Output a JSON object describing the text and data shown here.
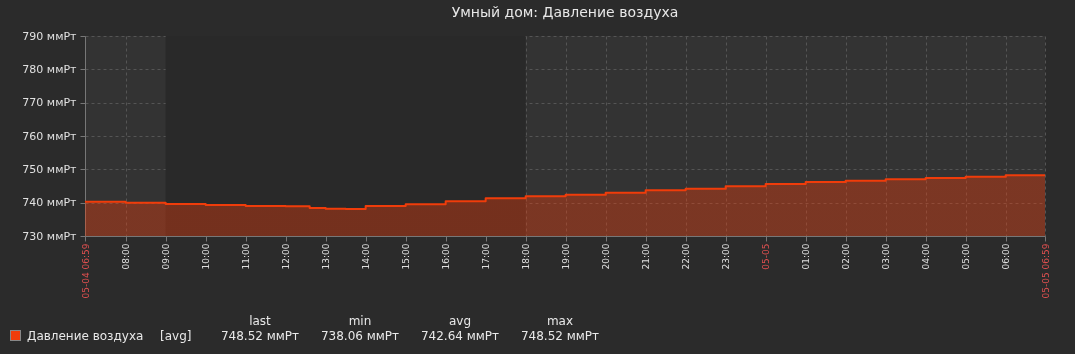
{
  "chart_data": {
    "type": "area",
    "title": "Умный дом: Давление воздуха",
    "x": [
      "--05-04T06:59",
      "--05-04T08:00",
      "--05-04T09:00",
      "--05-04T10:00",
      "--05-04T11:00",
      "--05-04T12:00",
      "--05-04T12:36",
      "--05-04T13:00",
      "--05-04T13:30",
      "--05-04T14:00",
      "--05-04T15:00",
      "--05-04T16:00",
      "--05-04T17:00",
      "--05-04T18:00",
      "--05-04T19:00",
      "--05-04T20:00",
      "--05-04T21:00",
      "--05-04T22:00",
      "--05-04T23:00",
      "--05-05T00:00",
      "--05-05T01:00",
      "--05-05T02:00",
      "--05-05T03:00",
      "--05-05T04:00",
      "--05-05T05:00",
      "--05-05T06:00",
      "--05-05T06:59"
    ],
    "series": [
      {
        "name": "Давление воздуха",
        "color": "#f03c0a",
        "values": [
          740.3,
          740.0,
          739.6,
          739.3,
          739.0,
          738.9,
          738.4,
          738.2,
          738.1,
          739.0,
          739.5,
          740.4,
          741.3,
          741.9,
          742.4,
          743.0,
          743.7,
          744.2,
          744.9,
          745.6,
          746.2,
          746.6,
          747.0,
          747.4,
          747.8,
          748.2,
          748.52
        ]
      }
    ],
    "xlim": [
      "--05-04T06:59",
      "--05-05T06:59"
    ],
    "xticks": [
      {
        "value": "--05-04T06:59",
        "label": "05-04 06:59"
      },
      {
        "value": "--05-04T08:00",
        "label": "08:00"
      },
      {
        "value": "--05-04T09:00",
        "label": "09:00"
      },
      {
        "value": "--05-04T10:00",
        "label": "10:00"
      },
      {
        "value": "--05-04T11:00",
        "label": "11:00"
      },
      {
        "value": "--05-04T12:00",
        "label": "12:00"
      },
      {
        "value": "--05-04T13:00",
        "label": "13:00"
      },
      {
        "value": "--05-04T14:00",
        "label": "14:00"
      },
      {
        "value": "--05-04T15:00",
        "label": "15:00"
      },
      {
        "value": "--05-04T16:00",
        "label": "16:00"
      },
      {
        "value": "--05-04T17:00",
        "label": "17:00"
      },
      {
        "value": "--05-04T18:00",
        "label": "18:00"
      },
      {
        "value": "--05-04T19:00",
        "label": "19:00"
      },
      {
        "value": "--05-04T20:00",
        "label": "20:00"
      },
      {
        "value": "--05-04T21:00",
        "label": "21:00"
      },
      {
        "value": "--05-04T22:00",
        "label": "22:00"
      },
      {
        "value": "--05-04T23:00",
        "label": "23:00"
      },
      {
        "value": "--05-05T00:00",
        "label": "05-05"
      },
      {
        "value": "--05-05T01:00",
        "label": "01:00"
      },
      {
        "value": "--05-05T02:00",
        "label": "02:00"
      },
      {
        "value": "--05-05T03:00",
        "label": "03:00"
      },
      {
        "value": "--05-05T04:00",
        "label": "04:00"
      },
      {
        "value": "--05-05T05:00",
        "label": "05:00"
      },
      {
        "value": "--05-05T06:00",
        "label": "06:00"
      },
      {
        "value": "--05-05T06:59",
        "label": "05-05 06:59"
      }
    ],
    "ylim": [
      730,
      790
    ],
    "yticks": [
      {
        "value": 730,
        "label": "730 ммРт"
      },
      {
        "value": 740,
        "label": "740 ммРт"
      },
      {
        "value": 750,
        "label": "750 ммРт"
      },
      {
        "value": 760,
        "label": "760 ммРт"
      },
      {
        "value": 770,
        "label": "770 ммРт"
      },
      {
        "value": 780,
        "label": "780 ммРт"
      },
      {
        "value": 790,
        "label": "790 ммРт"
      }
    ],
    "bands": [
      {
        "axis": "x",
        "from": "--05-04T09:00",
        "to": "--05-04T18:00",
        "color": "#292929"
      }
    ],
    "grid": true,
    "line_style": "solid",
    "legend": "bottom left",
    "annotations": [
      "[avg]",
      "last",
      "min",
      "avg",
      "max",
      "748.52 ммРт",
      "738.06 ммРт",
      "742.64 ммРт",
      "748.52 ммРт"
    ]
  }
}
